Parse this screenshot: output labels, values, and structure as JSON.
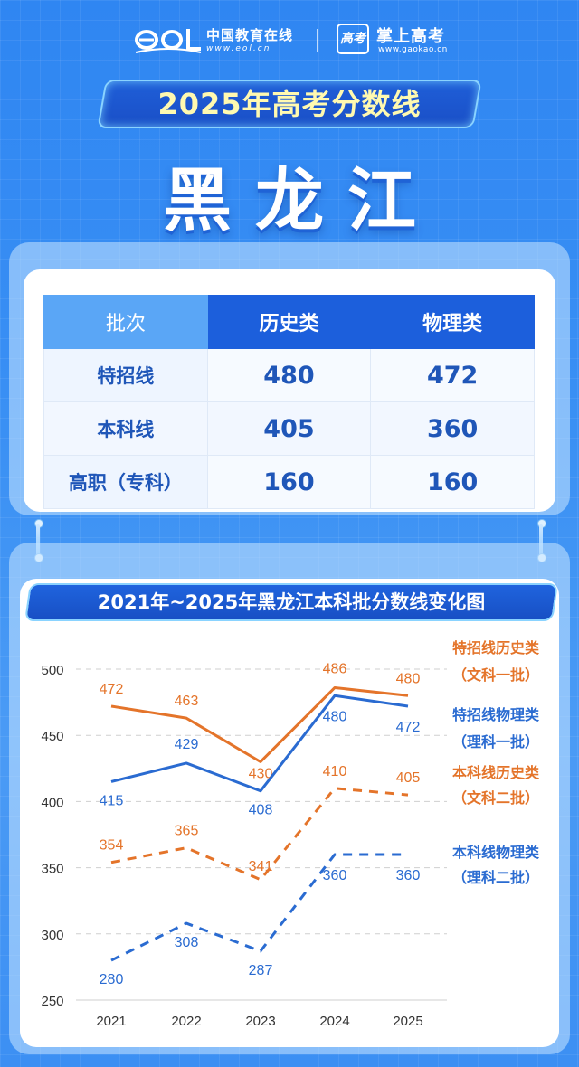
{
  "header": {
    "eol_cn": "中国教育在线",
    "eol_url": "www.eol.cn",
    "gaokao_icon": "高考",
    "gaokao_name": "掌上高考",
    "gaokao_url": "www.gaokao.cn"
  },
  "banner": {
    "title": "2025年高考分数线"
  },
  "province": "黑龙江",
  "table": {
    "headers": [
      "批次",
      "历史类",
      "物理类"
    ],
    "rows": [
      {
        "label": "特招线",
        "history": "480",
        "physics": "472"
      },
      {
        "label": "本科线",
        "history": "405",
        "physics": "360"
      },
      {
        "label": "高职（专科）",
        "history": "160",
        "physics": "160"
      }
    ]
  },
  "chart_title": "2021年~2025年黑龙江本科批分数线变化图",
  "chart_data": {
    "type": "line",
    "x": [
      2021,
      2022,
      2023,
      2024,
      2025
    ],
    "ylim": [
      250,
      500
    ],
    "yticks": [
      250,
      300,
      350,
      400,
      450,
      500
    ],
    "grid": true,
    "legend": "right",
    "series": [
      {
        "name": "特招线历史类",
        "name_sub": "（文科一批）",
        "values": [
          472,
          463,
          430,
          486,
          480
        ],
        "color": "#e4742a",
        "dashed": false
      },
      {
        "name": "特招线物理类",
        "name_sub": "（理科一批）",
        "values": [
          415,
          429,
          408,
          480,
          472
        ],
        "color": "#2a6bd1",
        "dashed": false
      },
      {
        "name": "本科线历史类",
        "name_sub": "（文科二批）",
        "values": [
          354,
          365,
          341,
          410,
          405
        ],
        "color": "#e4742a",
        "dashed": true
      },
      {
        "name": "本科线物理类",
        "name_sub": "（理科二批）",
        "values": [
          280,
          308,
          287,
          360,
          360
        ],
        "color": "#2a6bd1",
        "dashed": true
      }
    ]
  }
}
